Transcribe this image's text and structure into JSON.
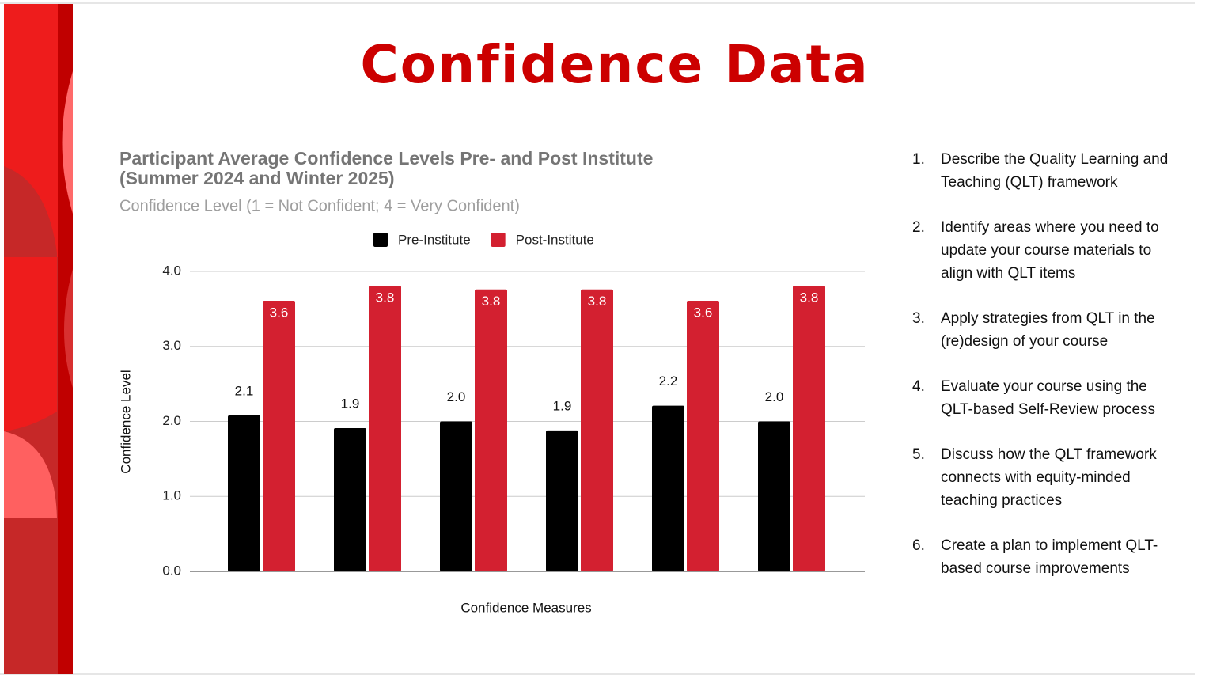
{
  "slide_title": "Confidence Data",
  "objectives": [
    {
      "number": "1.",
      "text": "Describe the Quality Learning and Teaching (QLT) framework"
    },
    {
      "number": "2.",
      "text": "Identify areas where you need to update your course materials to align with QLT items"
    },
    {
      "number": "3.",
      "text": "Apply strategies from QLT in the (re)design of your course"
    },
    {
      "number": "4.",
      "text": "Evaluate your course using the QLT-based Self-Review process"
    },
    {
      "number": "5.",
      "text": "Discuss how the QLT framework connects with equity-minded teaching practices"
    },
    {
      "number": "6.",
      "text": "Create a plan to implement QLT-based course improvements"
    }
  ],
  "chart_data": {
    "type": "bar",
    "title": "Participant Average Confidence Levels Pre- and Post Institute (Summer 2024 and Winter 2025)",
    "subtitle": "Confidence Level (1 = Not Confident; 4 = Very Confident)",
    "x_label": "Confidence Measures",
    "y_label": "Confidence Level",
    "categories": [
      null,
      null,
      null,
      null,
      null,
      null
    ],
    "series": [
      {
        "name": "Pre-Institute",
        "color": "#000000",
        "values": [
          2.08,
          1.91,
          2.0,
          1.88,
          2.21,
          2.0
        ],
        "value_labels": [
          "2.1",
          "1.9",
          "2.0",
          "1.9",
          "2.2",
          "2.0"
        ]
      },
      {
        "name": "Post-Institute",
        "color": "#d32030",
        "values": [
          3.61,
          3.81,
          3.76,
          3.76,
          3.61,
          3.81
        ],
        "value_labels": [
          "3.6",
          "3.8",
          "3.8",
          "3.8",
          "3.6",
          "3.8"
        ]
      }
    ],
    "ylim": [
      0,
      4
    ],
    "yticks": [
      {
        "value": 0,
        "label": "0.0"
      },
      {
        "value": 1,
        "label": "1.0"
      },
      {
        "value": 2,
        "label": "2.0"
      },
      {
        "value": 3,
        "label": "3.0"
      },
      {
        "value": 4,
        "label": "4.0"
      }
    ],
    "grid": true,
    "legend": "top"
  }
}
